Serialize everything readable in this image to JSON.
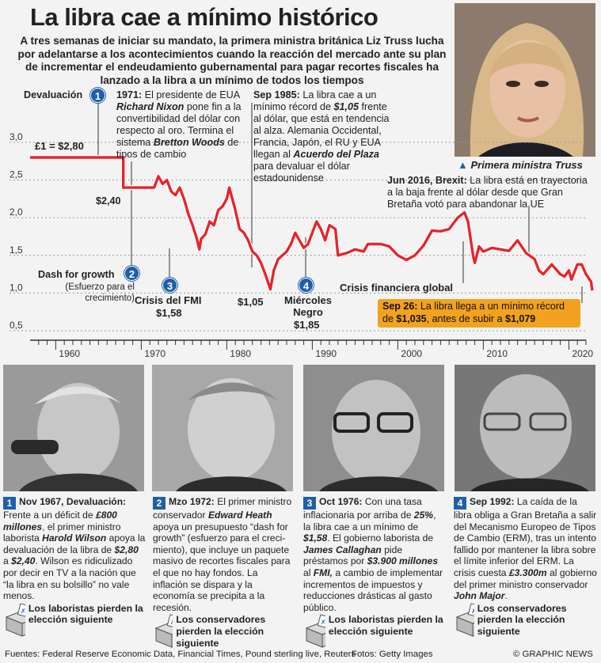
{
  "title": "La libra cae a mínimo histórico",
  "intro": "A tres semanas de iniciar su mandato, la primera ministra británica Liz Truss lucha por adelantarse a los acontecimientos cuando la reacción del mercado ante su plan de incrementar el endeudamiento gubernamental para pagar recortes fiscales ha lanzado a la libra a un mínimo de todos los tiempos",
  "photo_caption": "Primera ministra Truss",
  "chart_data": {
    "type": "line",
    "xlim": [
      1957,
      2022
    ],
    "ylim": [
      0.5,
      3.0
    ],
    "yticks": [
      "3,0",
      "2,5",
      "2,0",
      "1,5",
      "1,0",
      "0,5"
    ],
    "ytick_values": [
      3.0,
      2.5,
      2.0,
      1.5,
      1.0,
      0.5
    ],
    "xticks": [
      "1960",
      "1970",
      "1980",
      "1990",
      "2000",
      "2010",
      "2020"
    ],
    "xtick_values": [
      1960,
      1970,
      1980,
      1990,
      2000,
      2010,
      2020
    ],
    "series": [
      {
        "color": "#e8242b",
        "points": [
          [
            1957,
            2.8
          ],
          [
            1967.9,
            2.8
          ],
          [
            1967.9,
            2.4
          ],
          [
            1971.5,
            2.4
          ],
          [
            1972,
            2.55
          ],
          [
            1972.5,
            2.45
          ],
          [
            1973,
            2.5
          ],
          [
            1973.5,
            2.35
          ],
          [
            1974,
            2.3
          ],
          [
            1974.5,
            2.4
          ],
          [
            1975,
            2.25
          ],
          [
            1975.5,
            2.05
          ],
          [
            1976,
            1.9
          ],
          [
            1976.5,
            1.72
          ],
          [
            1976.8,
            1.58
          ],
          [
            1977,
            1.72
          ],
          [
            1977.5,
            1.78
          ],
          [
            1978,
            1.95
          ],
          [
            1978.5,
            1.9
          ],
          [
            1979,
            2.1
          ],
          [
            1979.5,
            2.15
          ],
          [
            1980,
            2.25
          ],
          [
            1980.3,
            2.4
          ],
          [
            1981,
            2.1
          ],
          [
            1981.5,
            1.85
          ],
          [
            1982,
            1.8
          ],
          [
            1982.5,
            1.7
          ],
          [
            1983,
            1.55
          ],
          [
            1983.5,
            1.5
          ],
          [
            1984,
            1.4
          ],
          [
            1984.5,
            1.25
          ],
          [
            1985.1,
            1.05
          ],
          [
            1985.5,
            1.3
          ],
          [
            1986,
            1.45
          ],
          [
            1986.5,
            1.5
          ],
          [
            1987,
            1.55
          ],
          [
            1987.5,
            1.65
          ],
          [
            1988,
            1.8
          ],
          [
            1988.5,
            1.7
          ],
          [
            1989,
            1.6
          ],
          [
            1989.5,
            1.65
          ],
          [
            1990,
            1.8
          ],
          [
            1990.5,
            1.95
          ],
          [
            1991,
            1.85
          ],
          [
            1991.5,
            1.7
          ],
          [
            1992,
            1.9
          ],
          [
            1992.7,
            1.85
          ],
          [
            1993,
            1.5
          ],
          [
            1994,
            1.53
          ],
          [
            1995,
            1.58
          ],
          [
            1996,
            1.55
          ],
          [
            1996.5,
            1.65
          ],
          [
            1997,
            1.65
          ],
          [
            1998,
            1.65
          ],
          [
            1999,
            1.62
          ],
          [
            2000,
            1.5
          ],
          [
            2001,
            1.44
          ],
          [
            2002,
            1.5
          ],
          [
            2003,
            1.63
          ],
          [
            2004,
            1.83
          ],
          [
            2005,
            1.82
          ],
          [
            2006,
            1.85
          ],
          [
            2007,
            2.0
          ],
          [
            2007.8,
            2.07
          ],
          [
            2008.2,
            1.95
          ],
          [
            2008.8,
            1.5
          ],
          [
            2009,
            1.4
          ],
          [
            2009.5,
            1.62
          ],
          [
            2010,
            1.55
          ],
          [
            2011,
            1.6
          ],
          [
            2012,
            1.58
          ],
          [
            2013,
            1.56
          ],
          [
            2014,
            1.7
          ],
          [
            2015,
            1.53
          ],
          [
            2016,
            1.45
          ],
          [
            2016.5,
            1.3
          ],
          [
            2017,
            1.25
          ],
          [
            2018,
            1.38
          ],
          [
            2019,
            1.25
          ],
          [
            2019.5,
            1.22
          ],
          [
            2020,
            1.3
          ],
          [
            2020.3,
            1.18
          ],
          [
            2021,
            1.38
          ],
          [
            2021.5,
            1.38
          ],
          [
            2022,
            1.25
          ],
          [
            2022.6,
            1.15
          ],
          [
            2022.73,
            1.035
          ]
        ]
      }
    ],
    "start_label": "£1 = $2,80",
    "annotations": {
      "devaluation_label": "Devaluación",
      "dev_value": "$2,40",
      "nixon_label": "1971:",
      "nixon_text_a": "El presidente de EUA",
      "nixon_name": "Richard Nixon",
      "nixon_text_b": "pone fin a la convertibilidad del dólar con respecto al oro. Termina el sistema",
      "nixon_system": "Bretton Woods",
      "nixon_text_c": "de tipos de cambio",
      "sep85_label": "Sep 1985:",
      "sep85_text_a": "La libra cae a un mínimo récord de",
      "sep85_value": "$1,05",
      "sep85_text_b": "frente al dólar, que está en tendencia al alza. Alemania Occidental, Francia, Japón, el RU y EUA llegan al",
      "sep85_accord": "Acuerdo del Plaza",
      "sep85_text_c": "para devaluar el dólar estadounidense",
      "jun16_label": "Jun 2016, Brexit:",
      "jun16_text": "La libra está en trayectoria a la baja frente al dólar desde que Gran Bretaña votó para abandonar la UE",
      "dash_label": "Dash for growth",
      "dash_sub": "(Esfuerzo para el crecimiento)",
      "imf_label": "Crisis del FMI",
      "imf_value": "$1,58",
      "low85_value": "$1,05",
      "bw_label": "Miércoles Negro",
      "bw_value": "$1,85",
      "gfc_label": "Crisis financiera global",
      "sep26_label": "Sep 26:",
      "sep26_text_a": "La libra llega a un mínimo récord de",
      "sep26_low": "$1,035",
      "sep26_text_b": ", antes de subir a",
      "sep26_high": "$1,079"
    },
    "badges": [
      "1",
      "2",
      "3",
      "4"
    ]
  },
  "bios": [
    {
      "num": "1",
      "head": "Nov 1967, Devaluación:",
      "text_a": "Frente a un déficit de",
      "em1": "£800 millones",
      "text_b": ", el primer ministro laborista",
      "em2": "Harold Wilson",
      "text_c": "apoya la devaluación de la libra de",
      "em3": "$2,80",
      "text_d": "a",
      "em4": "$2,40",
      "text_e": ". Wilson es ridiculizado por decir en TV a la nación que “la libra en su bolsillo” no vale menos.",
      "result": "Los laboristas pierden la elección siguiente"
    },
    {
      "num": "2",
      "head": "Mzo 1972:",
      "text_a": "El primer ministro conservador",
      "em1": "Edward Heath",
      "text_b": "apoya un presupuesto “dash for growth” (esfuerzo para el creci- miento), que incluye un paquete masivo de recortes fiscales para el que no hay fondos. La inflación se dispara y la economía se precipita a la recesión.",
      "result": "Los conservadores pierden la elección siguiente"
    },
    {
      "num": "3",
      "head": "Oct 1976:",
      "text_a": "Con una tasa inflacionaria por arriba de",
      "em1": "25%",
      "text_b": ", la libra cae a un mínimo de",
      "em2": "$1,58",
      "text_c": ". El gobierno laborista de",
      "em3": "James Callaghan",
      "text_d": "pide préstamos por",
      "em4": "$3.900 millones",
      "text_e": "al",
      "em5": "FMI,",
      "text_f": "a cambio de implementar incrementos de impuestos y reducciones drásticas al gasto público.",
      "result": "Los laboristas pierden la elección siguiente"
    },
    {
      "num": "4",
      "head": "Sep 1992:",
      "text_a": "La caída de la libra obliga a Gran Bretaña a salir del Mecanismo Europeo de Tipos de Cambio (ERM), tras un intento fallido por mantener la libra sobre el límite inferior del ERM. La crisis cuesta",
      "em1": "£3.300m",
      "text_b": "al gobierno del primer ministro conservador",
      "em2": "John Major",
      "text_c": ".",
      "result": "Los conservadores pierden la elección siguiente"
    }
  ],
  "sources": "Fuentes: Federal Reserve Economic Data, Financial Times, Pound sterling live, Reuters",
  "photos_credit": "Fotos: Getty Images",
  "credit": "© GRAPHIC NEWS",
  "colors": {
    "line": "#e8242b",
    "badge": "#1f5fa8",
    "callout": "#f2a21e",
    "background": "#f3f3f3"
  }
}
